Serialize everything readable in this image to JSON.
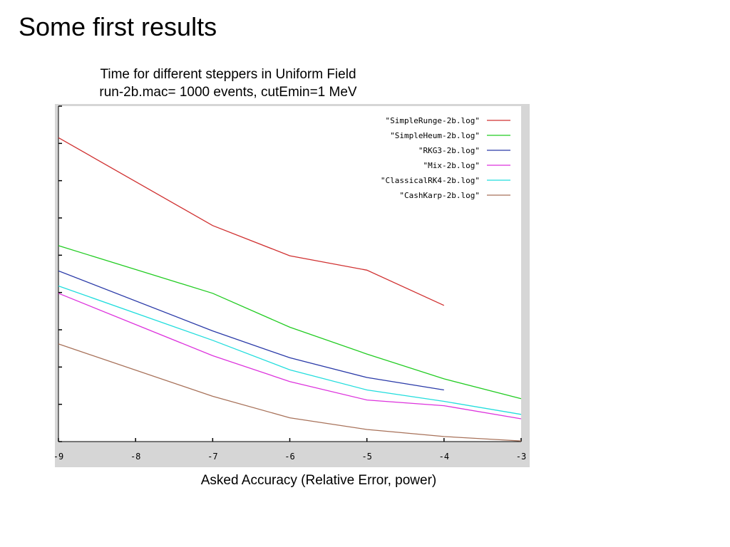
{
  "slide": {
    "title": "Some first results"
  },
  "chart_data": {
    "type": "line",
    "title": "Time for different steppers in Uniform Field",
    "subtitle": "run-2b.mac= 1000 events, cutEmin=1 MeV",
    "xlabel": "Asked Accuracy (Relative Error, power)",
    "ylabel": "",
    "xlim": [
      -9,
      -3
    ],
    "ylim": [
      0,
      100
    ],
    "xticks": [
      -9,
      -8,
      -7,
      -6,
      -5,
      -4,
      -3
    ],
    "xtick_labels": [
      "-9",
      "-8",
      "-7",
      "-6",
      "-5",
      "-4",
      "-3"
    ],
    "y_tick_count": 9,
    "grid": false,
    "legend_position": "top-right",
    "series": [
      {
        "name": "\"SimpleRunge-2b.log\"",
        "color": "#d03030",
        "x": [
          -9,
          -7,
          -6,
          -5,
          -4
        ],
        "y": [
          90.6,
          64.4,
          55.4,
          51.1,
          40.6
        ]
      },
      {
        "name": "\"SimpleHeum-2b.log\"",
        "color": "#22cc22",
        "x": [
          -9,
          -7,
          -6,
          -5,
          -4,
          -3
        ],
        "y": [
          58.4,
          44.2,
          34.1,
          26.1,
          18.7,
          12.8
        ]
      },
      {
        "name": "\"RKG3-2b.log\"",
        "color": "#2a3aa8",
        "x": [
          -9,
          -7,
          -6,
          -5,
          -4
        ],
        "y": [
          50.9,
          33.0,
          25.0,
          19.1,
          15.4
        ]
      },
      {
        "name": "\"Mix-2b.log\"",
        "color": "#dd33dd",
        "x": [
          -9,
          -7,
          -6,
          -5,
          -4,
          -3
        ],
        "y": [
          44.2,
          25.6,
          17.9,
          12.4,
          10.7,
          6.8
        ]
      },
      {
        "name": "\"ClassicalRK4-2b.log\"",
        "color": "#22dddd",
        "x": [
          -9,
          -7,
          -6,
          -5,
          -4,
          -3
        ],
        "y": [
          46.4,
          30.2,
          21.4,
          15.4,
          12.0,
          8.1
        ]
      },
      {
        "name": "\"CashKarp-2b.log\"",
        "color": "#a8725a",
        "x": [
          -9,
          -7,
          -6,
          -5,
          -4,
          -3
        ],
        "y": [
          29.1,
          13.5,
          7.1,
          3.6,
          1.5,
          0.2
        ]
      }
    ]
  }
}
